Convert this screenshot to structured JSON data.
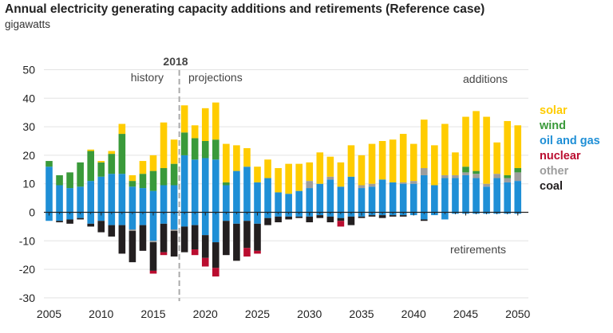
{
  "title": "Annual electricity generating capacity additions and retirements (Reference case)",
  "subtitle": "gigawatts",
  "colors": {
    "solar": "#FFCC00",
    "wind": "#3A9A3A",
    "oil_and_gas": "#1F8FD6",
    "nuclear": "#BA0C2F",
    "other": "#9D9D9D",
    "coal": "#231F20",
    "divider": "#aaaaaa"
  },
  "annotations": {
    "divider_year": "2018",
    "history": "history",
    "projections": "projections",
    "additions": "additions",
    "retirements": "retirements"
  },
  "chart_data": {
    "type": "bar",
    "stacked": true,
    "x": [
      2005,
      2006,
      2007,
      2008,
      2009,
      2010,
      2011,
      2012,
      2013,
      2014,
      2015,
      2016,
      2017,
      2018,
      2019,
      2020,
      2021,
      2022,
      2023,
      2024,
      2025,
      2026,
      2027,
      2028,
      2029,
      2030,
      2031,
      2032,
      2033,
      2034,
      2035,
      2036,
      2037,
      2038,
      2039,
      2040,
      2041,
      2042,
      2043,
      2044,
      2045,
      2046,
      2047,
      2048,
      2049,
      2050
    ],
    "xticks": [
      2005,
      2010,
      2015,
      2020,
      2025,
      2030,
      2035,
      2040,
      2045,
      2050
    ],
    "yticks": [
      50,
      40,
      30,
      20,
      10,
      0,
      -10,
      -20,
      -30
    ],
    "ylim": [
      -30,
      50
    ],
    "divider_at": 2017.5,
    "legend": [
      "solar",
      "wind",
      "oil and gas",
      "nuclear",
      "other",
      "coal"
    ],
    "additions": [
      {
        "name": "oil and gas",
        "key": "oil_and_gas",
        "values": [
          16,
          9.5,
          8.5,
          9,
          11,
          12.5,
          13.5,
          13.5,
          9,
          8.5,
          7.5,
          9.5,
          9.5,
          20,
          18.5,
          19,
          18.5,
          9.5,
          14.5,
          16,
          10.5,
          12,
          7,
          6.5,
          7.5,
          8.5,
          10,
          11.5,
          9,
          12.5,
          8.5,
          9,
          11.5,
          10.5,
          10,
          10,
          13,
          9.5,
          12,
          12,
          13,
          12,
          9,
          12,
          10.5,
          11
        ]
      },
      {
        "name": "other",
        "key": "other",
        "values": [
          0,
          0,
          0,
          0,
          0,
          0,
          0,
          0,
          0,
          0,
          0,
          0,
          0,
          0,
          0,
          0,
          0,
          0,
          0,
          0,
          0,
          0,
          0,
          0,
          0,
          2.5,
          0,
          1,
          0,
          0,
          1,
          1,
          0,
          0,
          0.5,
          1,
          2.5,
          0,
          1,
          1,
          1,
          1.5,
          1,
          1.5,
          1.5,
          3
        ]
      },
      {
        "name": "wind",
        "key": "wind",
        "values": [
          2,
          3.5,
          5.5,
          8.5,
          10.5,
          5,
          7,
          14,
          2,
          5,
          7,
          6,
          7.5,
          8,
          7.5,
          6,
          7,
          1,
          0,
          0,
          0,
          0,
          0,
          0,
          0,
          0,
          0,
          0,
          0,
          0,
          0,
          0,
          0,
          0,
          0,
          0,
          0,
          0,
          0,
          0,
          2,
          1,
          0,
          0,
          1,
          1.5
        ]
      },
      {
        "name": "solar",
        "key": "solar",
        "values": [
          0,
          0,
          0,
          0,
          0.5,
          0.5,
          1,
          3.5,
          2,
          4.5,
          5.5,
          16,
          8.5,
          9.5,
          4.5,
          11.5,
          13,
          13.5,
          9,
          6.5,
          5.5,
          6.5,
          8.5,
          10.5,
          9.5,
          6.5,
          11,
          7,
          8.5,
          11,
          10.5,
          14,
          13.5,
          15,
          17,
          13,
          17,
          14,
          18,
          8,
          17.5,
          21,
          23.5,
          11,
          19,
          15
        ]
      }
    ],
    "retirements": [
      {
        "name": "oil and gas",
        "key": "oil_and_gas",
        "values": [
          -3,
          -3,
          -2.5,
          -2,
          -4,
          -3,
          -4.5,
          -4.5,
          -6,
          -4.5,
          -10,
          -4,
          -6,
          -5,
          -4.5,
          -8,
          -10.5,
          -3,
          -4,
          -3,
          -4,
          -2,
          -1.5,
          -1.5,
          -1.5,
          -1.5,
          -1,
          -1.5,
          -2,
          -1.5,
          -1.5,
          -1,
          -1,
          -1,
          -1,
          -1,
          -2.5,
          -1,
          -2.5,
          -0.5,
          -0.5,
          -0.5,
          -0.5,
          -0.5,
          -0.5,
          -0.5
        ]
      },
      {
        "name": "other",
        "key": "other",
        "values": [
          0,
          0,
          0,
          0,
          0,
          0,
          0,
          0,
          -0.5,
          0,
          -0.5,
          0,
          -0.5,
          0,
          0,
          0,
          0,
          0,
          0,
          0,
          0,
          0,
          0,
          0,
          0,
          0,
          0,
          0,
          0,
          0,
          0,
          0,
          0,
          0,
          0,
          0,
          0,
          0,
          0,
          0,
          0,
          0,
          0,
          0,
          0,
          0
        ]
      },
      {
        "name": "coal",
        "key": "coal",
        "values": [
          0,
          -0.5,
          -1.5,
          -0.5,
          -1,
          -4,
          -4,
          -10,
          -11,
          -9,
          -10,
          -10,
          -9,
          -9,
          -8.5,
          -8,
          -9,
          -12,
          -13,
          -9.5,
          -9.5,
          -2.5,
          -2,
          -1,
          -0.5,
          -2,
          -1,
          -2,
          -1,
          -3,
          -0.5,
          -0.5,
          -1,
          -0.5,
          -0.5,
          0,
          -0.5,
          0,
          0,
          0,
          0,
          0,
          0,
          0,
          0,
          0
        ]
      },
      {
        "name": "nuclear",
        "key": "nuclear",
        "values": [
          0,
          0,
          0,
          0,
          0,
          0,
          0,
          0,
          0,
          0,
          -1,
          -1,
          0,
          0,
          -2,
          -3,
          -3,
          0,
          0,
          -3,
          -1,
          0,
          0,
          0,
          0,
          0,
          0,
          0,
          -2,
          0,
          0,
          0,
          0,
          0,
          0,
          0,
          0,
          0,
          0,
          0,
          0,
          0,
          0,
          0,
          0,
          0
        ]
      }
    ],
    "series_order_up": [
      "oil_and_gas",
      "other",
      "wind",
      "solar"
    ],
    "series_order_down": [
      "oil_and_gas",
      "other",
      "coal",
      "nuclear"
    ]
  }
}
